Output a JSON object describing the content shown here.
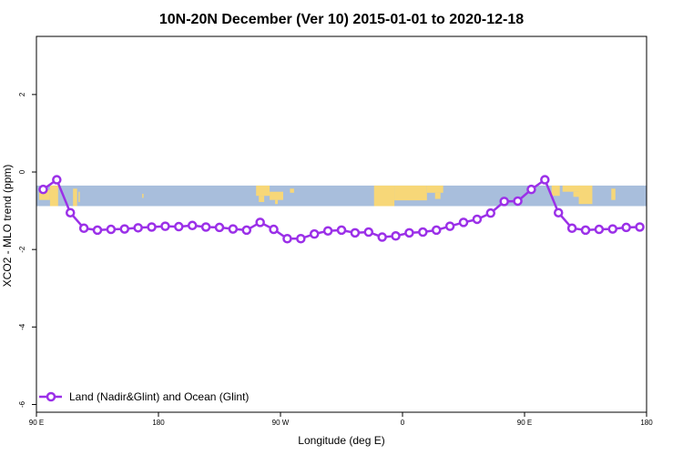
{
  "chart_data": {
    "type": "line",
    "title": "10N-20N December (Ver 10)   2015-01-01 to 2020-12-18",
    "xlabel": "Longitude (deg E)",
    "ylabel": "XCO2 - MLO trend (ppm)",
    "xlim": [
      90,
      540
    ],
    "ylim": [
      -6.2,
      3.5
    ],
    "x_ticks": [
      90,
      180,
      270,
      360,
      450,
      540
    ],
    "x_tick_labels": [
      "90 E",
      "180",
      "90 W",
      "0",
      "90 E",
      "180"
    ],
    "y_ticks": [
      -6,
      -4,
      -2,
      0,
      2
    ],
    "y_tick_labels": [
      "-6",
      "-4",
      "-2",
      "0",
      "2"
    ],
    "grid": false,
    "legend_position": "bottom-left",
    "colors": {
      "series": "#9b30e8",
      "land": "#f7d778",
      "ocean": "#a8bedc"
    },
    "series": [
      {
        "name": "Land (Nadir&Glint) and Ocean (Glint)",
        "x": [
          95,
          105,
          115,
          125,
          135,
          145,
          155,
          165,
          175,
          185,
          195,
          205,
          215,
          225,
          235,
          245,
          255,
          265,
          275,
          285,
          295,
          305,
          315,
          325,
          335,
          345,
          355,
          365,
          375,
          385,
          395,
          405,
          415,
          425,
          435,
          445,
          455,
          465,
          475,
          485,
          495,
          505,
          515,
          525,
          535
        ],
        "values": [
          -0.45,
          -0.2,
          -1.05,
          -1.45,
          -1.5,
          -1.48,
          -1.47,
          -1.44,
          -1.42,
          -1.4,
          -1.41,
          -1.38,
          -1.42,
          -1.43,
          -1.47,
          -1.5,
          -1.3,
          -1.48,
          -1.72,
          -1.72,
          -1.6,
          -1.52,
          -1.5,
          -1.57,
          -1.55,
          -1.68,
          -1.65,
          -1.57,
          -1.55,
          -1.5,
          -1.4,
          -1.3,
          -1.22,
          -1.06,
          -0.76,
          -0.75,
          -0.45,
          -0.2,
          -1.05,
          -1.45,
          -1.5,
          -1.48,
          -1.47,
          -1.43,
          -1.42
        ]
      }
    ]
  }
}
